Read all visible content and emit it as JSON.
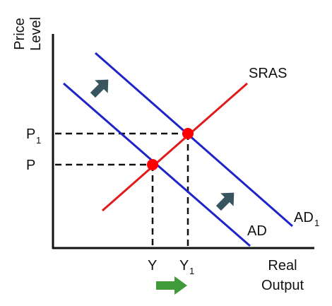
{
  "diagram": {
    "y_axis_label_line1": "Price",
    "y_axis_label_line2": "Level",
    "x_axis_label_line1": "Real",
    "x_axis_label_line2": "Output",
    "p1_main": "P",
    "p1_sub": "1",
    "p_label": "P",
    "y_label": "Y",
    "y1_main": "Y",
    "y1_sub": "1",
    "sras_label": "SRAS",
    "ad_label": "AD",
    "ad1_main": "AD",
    "ad1_sub": "1",
    "colors": {
      "ad": "#1f24c8",
      "sras": "#e01b1b",
      "equilibrium_point": "#ff0000",
      "shift_arrow": "#37545f",
      "output_arrow": "#3f9a3a",
      "axis": "#111111"
    },
    "icons": [
      "shift-arrow-icon",
      "output-increase-arrow-icon"
    ]
  }
}
